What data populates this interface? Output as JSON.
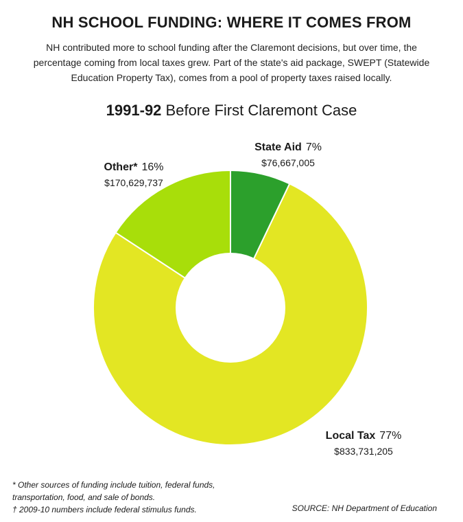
{
  "header": {
    "title": "NH SCHOOL FUNDING: WHERE IT COMES FROM",
    "subtitle": "NH contributed more to school funding after the Claremont decisions, but over time, the percentage coming from local taxes grew. Part of the state's aid package, SWEPT (Statewide Education Property Tax), comes from a pool of property taxes raised locally."
  },
  "chart_title": {
    "year": "1991-92",
    "rest": "Before First Claremont Case"
  },
  "chart_data": {
    "type": "pie",
    "donut": true,
    "slices": [
      {
        "label": "State Aid",
        "percent_label": "7%",
        "amount": "$76,667,005",
        "value": 76667005,
        "color": "#2ca02c"
      },
      {
        "label": "Local Tax",
        "percent_label": "77%",
        "amount": "$833,731,205",
        "value": 833731205,
        "color": "#e3e623"
      },
      {
        "label": "Other*",
        "percent_label": "16%",
        "amount": "$170,629,737",
        "value": 170629737,
        "color": "#a8de0a"
      }
    ]
  },
  "footnotes": {
    "other": "* Other sources of funding include tuition, federal funds, transportation, food, and sale of bonds.",
    "dagger": "† 2009-10 numbers include federal stimulus funds."
  },
  "source": "SOURCE: NH Department of Education"
}
